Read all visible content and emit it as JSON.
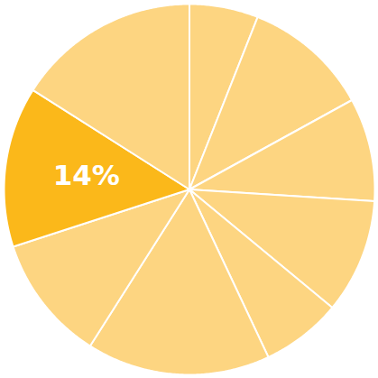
{
  "chart_data": {
    "type": "pie",
    "values": [
      6,
      11,
      9,
      10,
      7,
      16,
      11,
      14,
      16
    ],
    "value_labels": [
      null,
      null,
      null,
      null,
      null,
      null,
      null,
      "14%",
      null
    ],
    "colors": [
      "#fdd581",
      "#fdd581",
      "#fdd581",
      "#fdd581",
      "#fdd581",
      "#fdd581",
      "#fdd581",
      "#fbb81a",
      "#fdd581"
    ]
  }
}
